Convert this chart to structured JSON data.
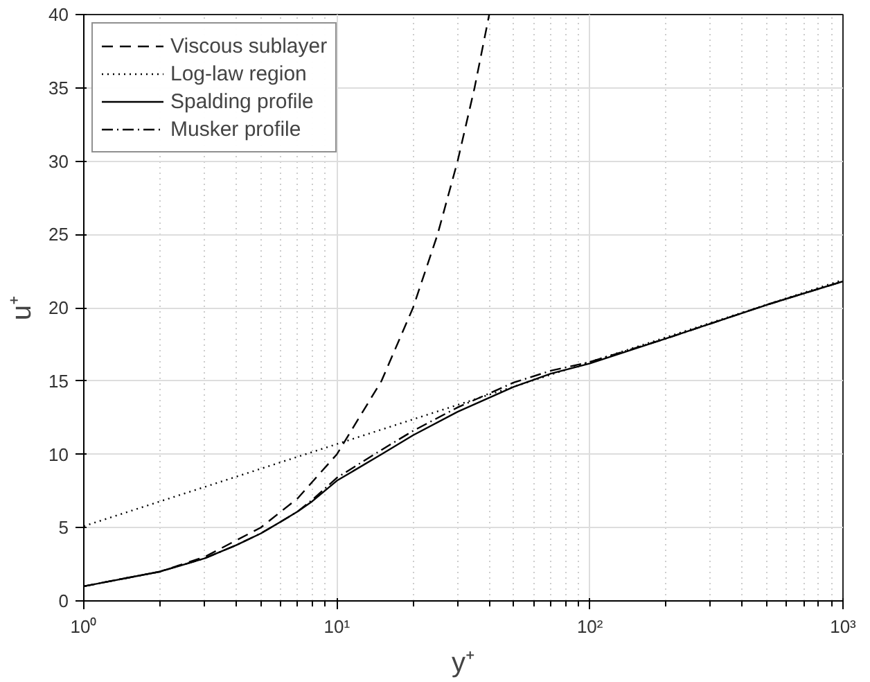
{
  "chart_data": {
    "type": "line",
    "xlabel": "y⁺",
    "ylabel": "u⁺",
    "log": "x",
    "xlim": [
      1,
      1000
    ],
    "ylim": [
      0,
      40
    ],
    "xticks": [
      {
        "value": 1,
        "label": "10⁰"
      },
      {
        "value": 10,
        "label": "10¹"
      },
      {
        "value": 100,
        "label": "10²"
      },
      {
        "value": 1000,
        "label": "10³"
      }
    ],
    "yticks": [
      0,
      5,
      10,
      15,
      20,
      25,
      30,
      35,
      40
    ],
    "grid": true,
    "legend": "top left",
    "series": [
      {
        "name": "Viscous sublayer",
        "color": "#000000",
        "line_style": "dashed",
        "x": [
          1,
          2,
          3,
          5,
          7,
          10,
          15,
          20,
          25,
          30,
          35,
          40
        ],
        "values": [
          1,
          2,
          3,
          5,
          7,
          10,
          15,
          20,
          25,
          30,
          35,
          40
        ]
      },
      {
        "name": "Log-law region",
        "color": "#000000",
        "line_style": "dotted",
        "x": [
          1,
          10,
          100,
          1000
        ],
        "values": [
          5.1,
          10.7,
          16.3,
          21.9
        ]
      },
      {
        "name": "Spalding profile",
        "color": "#000000",
        "line_style": "solid",
        "x": [
          1,
          2,
          3,
          4,
          5,
          6,
          7,
          8,
          10,
          15,
          20,
          30,
          50,
          70,
          100,
          200,
          500,
          1000
        ],
        "values": [
          1.0,
          2.0,
          2.9,
          3.8,
          4.6,
          5.4,
          6.1,
          6.8,
          8.2,
          10.0,
          11.3,
          12.9,
          14.6,
          15.5,
          16.2,
          17.9,
          20.2,
          21.8
        ]
      },
      {
        "name": "Musker profile",
        "color": "#000000",
        "line_style": "dashdot",
        "x": [
          1,
          2,
          3,
          4,
          5,
          6,
          7,
          8,
          10,
          15,
          20,
          30,
          50,
          70,
          100,
          200,
          500,
          1000
        ],
        "values": [
          1.0,
          2.0,
          2.9,
          3.8,
          4.6,
          5.4,
          6.1,
          6.9,
          8.4,
          10.3,
          11.6,
          13.2,
          14.9,
          15.7,
          16.3,
          17.9,
          20.2,
          21.8
        ]
      }
    ]
  }
}
